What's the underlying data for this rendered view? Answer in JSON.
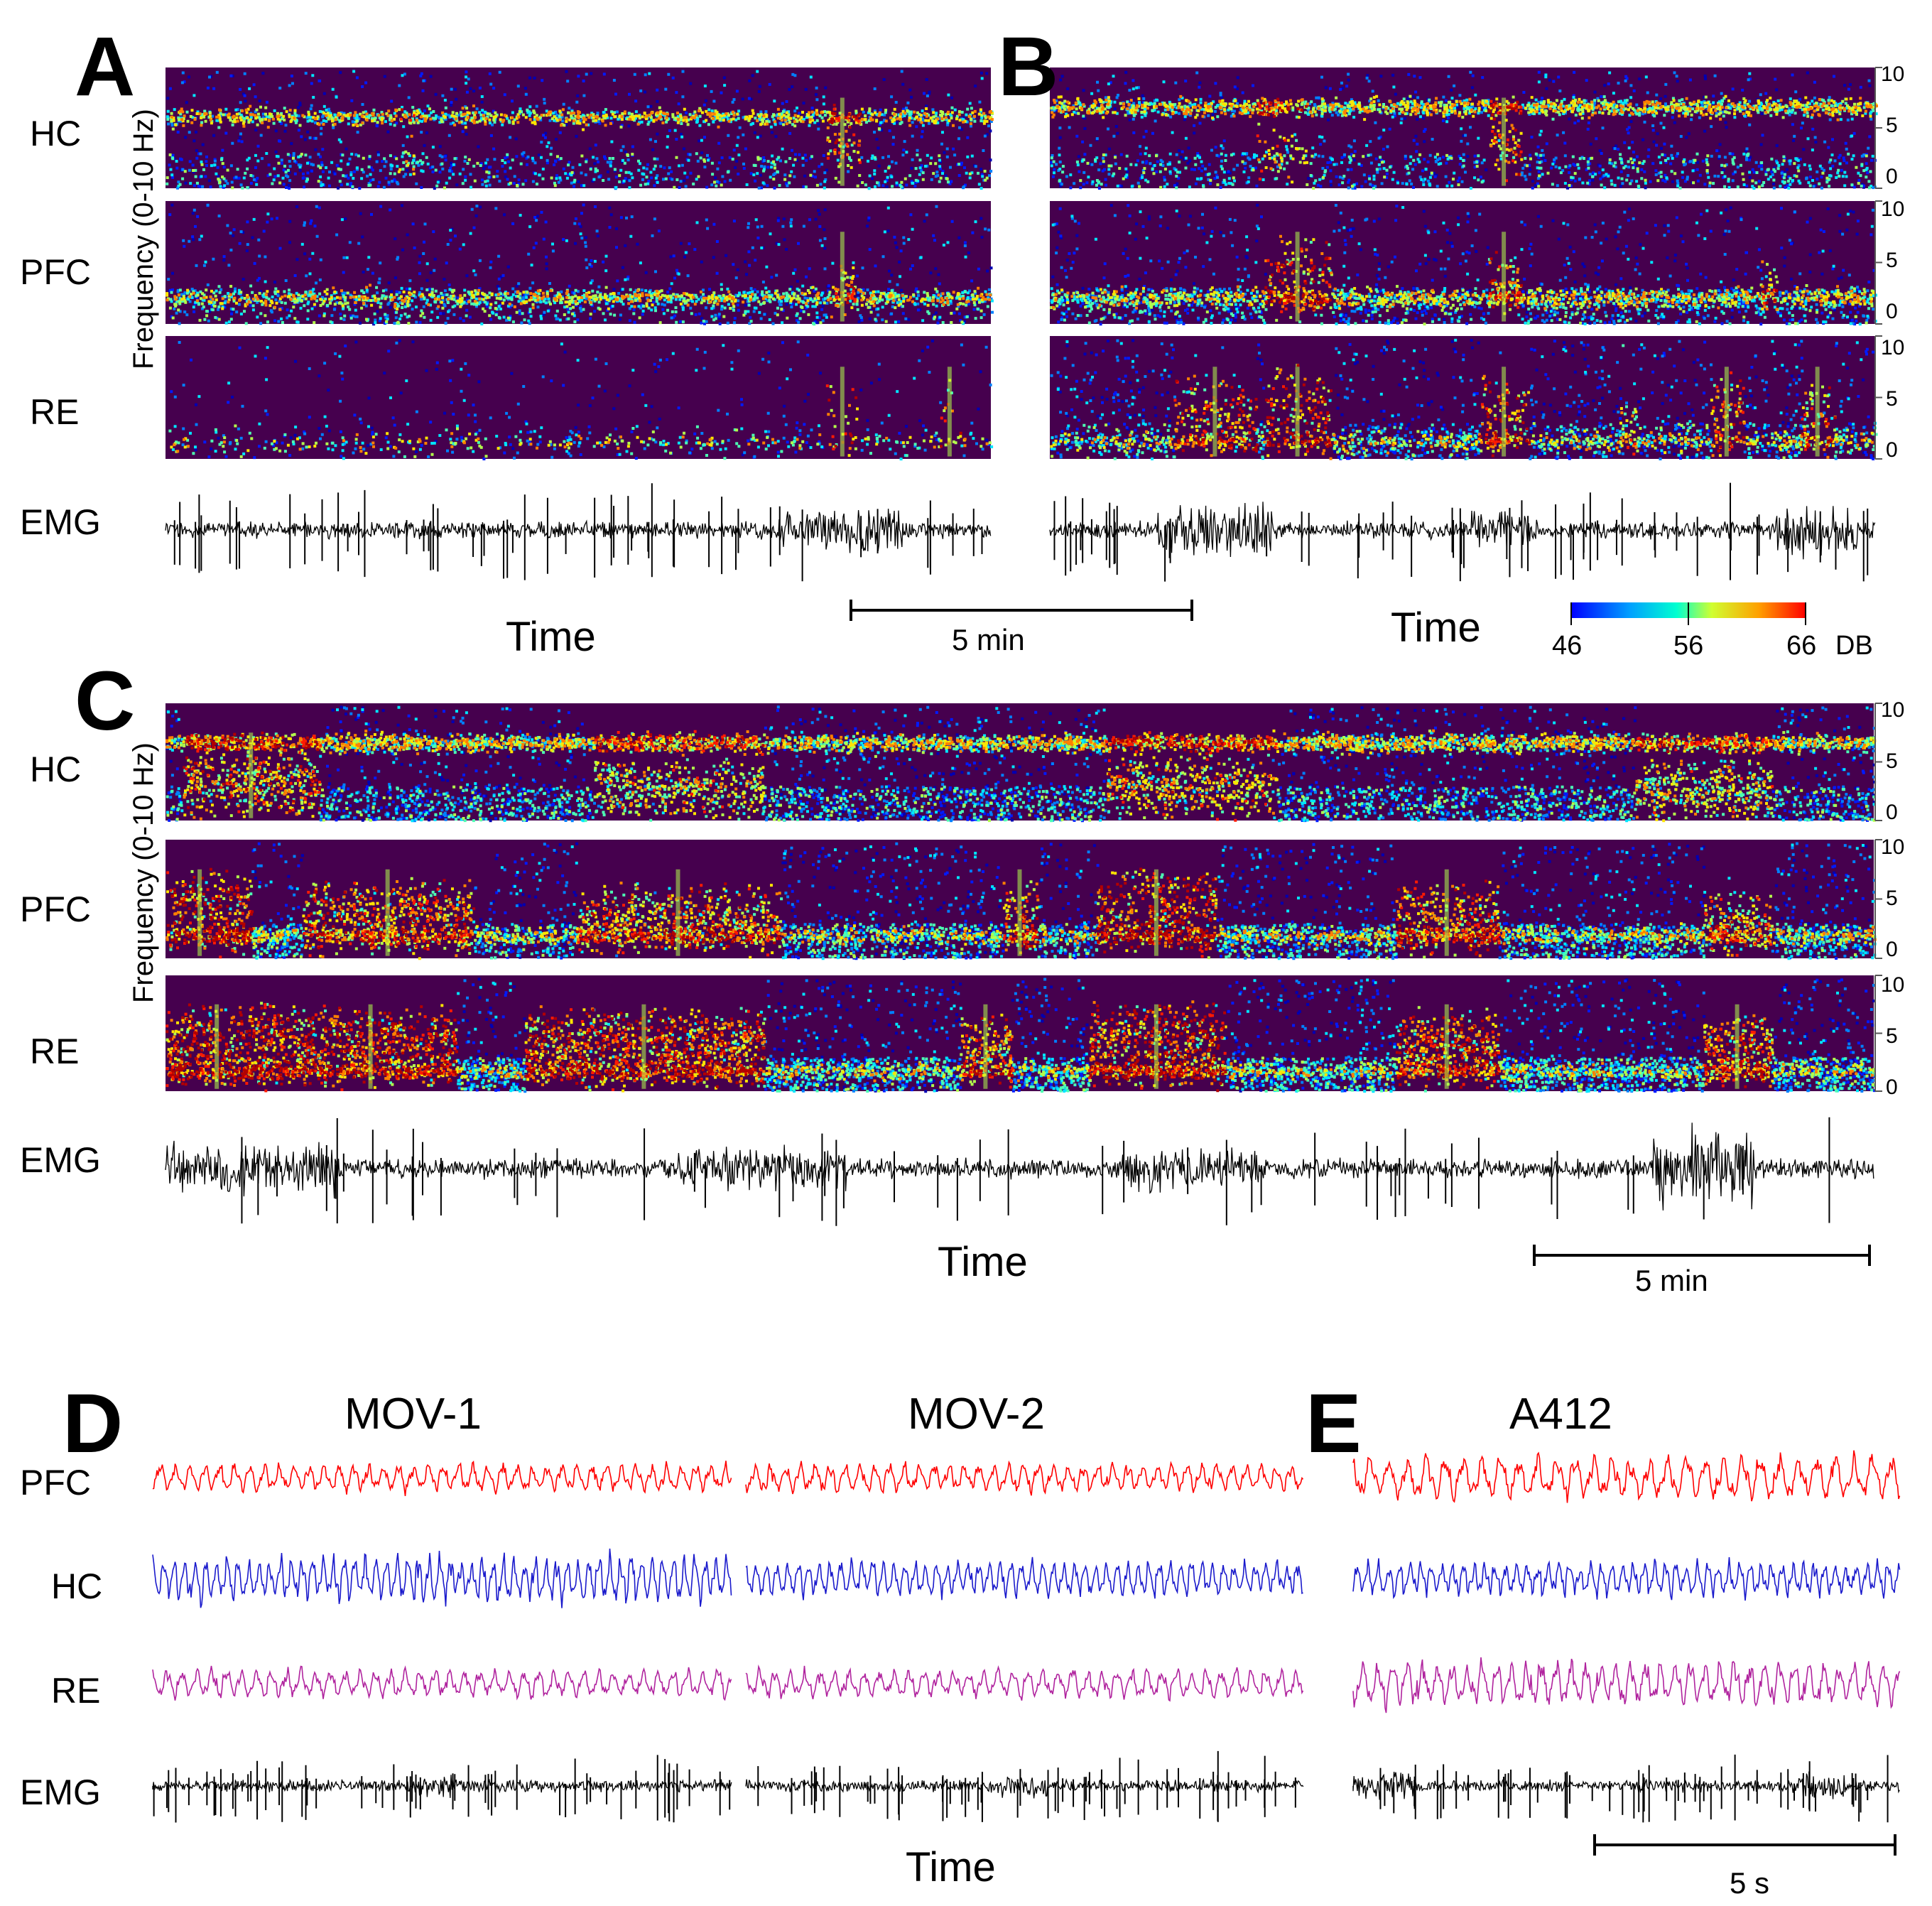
{
  "panels": {
    "A": {
      "letter": "A",
      "rows": [
        "HC",
        "PFC",
        "RE",
        "EMG"
      ],
      "xlabel": "Time",
      "ylabel": "Frequency (0-10 Hz)"
    },
    "B": {
      "letter": "B",
      "xlabel": "Time",
      "yticks": [
        "10",
        "5",
        "0"
      ],
      "scalebar": "5 min"
    },
    "C": {
      "letter": "C",
      "rows": [
        "HC",
        "PFC",
        "RE",
        "EMG"
      ],
      "xlabel": "Time",
      "ylabel": "Frequency (0-10 Hz)",
      "yticks": [
        "10",
        "5",
        "0"
      ],
      "scalebar": "5 min"
    },
    "D": {
      "letter": "D",
      "titles": [
        "MOV-1",
        "MOV-2"
      ],
      "rows": [
        "PFC",
        "HC",
        "RE",
        "EMG"
      ],
      "xlabel": "Time"
    },
    "E": {
      "letter": "E",
      "title": "A412",
      "scalebar": "5 s"
    }
  },
  "colorbar": {
    "ticks": [
      "46",
      "56",
      "66"
    ],
    "unit": "DB"
  },
  "colors": {
    "spectrogram_bg": "#46004e",
    "pfc_trace": "#ff0000",
    "hc_trace": "#1a1acc",
    "re_trace": "#b0239e",
    "emg_trace": "#000000"
  },
  "chart_data": {
    "type": "heatmap",
    "frequency_range_hz": [
      0,
      10
    ],
    "color_scale_db": [
      46,
      66
    ],
    "dominant_band_hz": {
      "HC": 7,
      "PFC": 2,
      "RE": 2
    }
  }
}
